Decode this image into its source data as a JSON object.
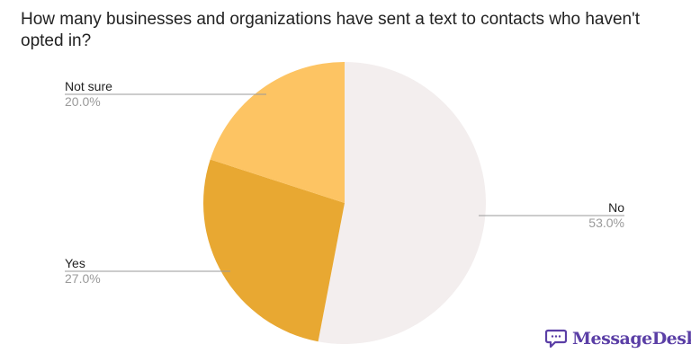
{
  "chart_data": {
    "type": "pie",
    "title": "How many businesses and organizations have sent a text to contacts who haven't opted in?",
    "start": "top",
    "direction": "clockwise",
    "slices": [
      {
        "label": "No",
        "value": 53.0,
        "pct_label": "53.0%",
        "color": "#f3eeee"
      },
      {
        "label": "Yes",
        "value": 27.0,
        "pct_label": "27.0%",
        "color": "#e8a832"
      },
      {
        "label": "Not sure",
        "value": 20.0,
        "pct_label": "20.0%",
        "color": "#fdc463"
      }
    ]
  },
  "brand": {
    "name": "MessageDesk",
    "color": "#5b3fa6",
    "icon": "chat-bubble-icon"
  }
}
